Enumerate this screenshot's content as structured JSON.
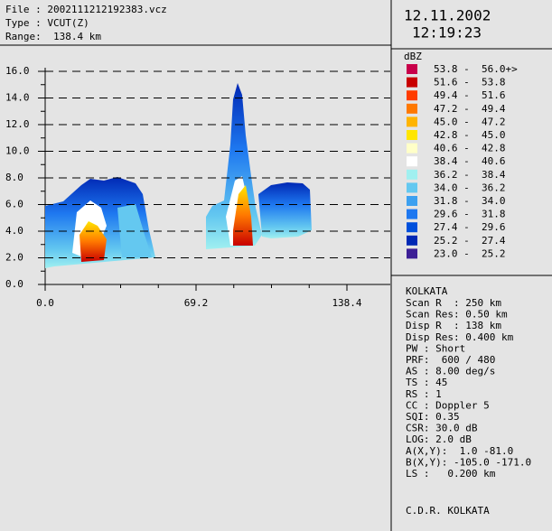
{
  "header": {
    "file": "File : 2002111212192383.vcz",
    "type": "Type : VCUT(Z)",
    "range": "Range:  138.4 km"
  },
  "date": "12.11.2002",
  "time": "12:19:23",
  "legend": {
    "unit": "dBZ",
    "rows": [
      {
        "label": "53.8 -  56.0+>",
        "color": "#c8004a"
      },
      {
        "label": "51.6 -  53.8",
        "color": "#c80000"
      },
      {
        "label": "49.4 -  51.6",
        "color": "#ff3c00"
      },
      {
        "label": "47.2 -  49.4",
        "color": "#ff7800"
      },
      {
        "label": "45.0 -  47.2",
        "color": "#ffb400"
      },
      {
        "label": "42.8 -  45.0",
        "color": "#ffe600"
      },
      {
        "label": "40.6 -  42.8",
        "color": "#ffffc8"
      },
      {
        "label": "38.4 -  40.6",
        "color": "#ffffff"
      },
      {
        "label": "36.2 -  38.4",
        "color": "#a0f0f0"
      },
      {
        "label": "34.0 -  36.2",
        "color": "#64c8f0"
      },
      {
        "label": "31.8 -  34.0",
        "color": "#3ca0f0"
      },
      {
        "label": "29.6 -  31.8",
        "color": "#1e78f0"
      },
      {
        "label": "27.4 -  29.6",
        "color": "#0050dc"
      },
      {
        "label": "25.2 -  27.4",
        "color": "#0028b4"
      },
      {
        "label": "23.0 -  25.2",
        "color": "#3c1e96"
      }
    ]
  },
  "plot": {
    "yticks": [
      "16.0",
      "14.0",
      "12.0",
      "10.0",
      "8.0",
      "6.0",
      "4.0",
      "2.0",
      "0.0"
    ],
    "xticks": [
      "0.0",
      "69.2",
      "138.4"
    ]
  },
  "info": {
    "station": "KOLKATA",
    "lines": [
      "Scan R  : 250 km",
      "Scan Res: 0.50 km",
      "Disp R  : 138 km",
      "Disp Res: 0.400 km",
      "PW : Short",
      "PRF:  600 / 480",
      "AS : 8.00 deg/s",
      "TS : 45",
      "RS : 1",
      "CC : Doppler 5",
      "SQI: 0.35",
      "CSR: 30.0 dB",
      "LOG: 2.0 dB",
      "A(X,Y):  1.0 -81.0",
      "B(X,Y): -105.0 -171.0",
      "LS :   0.200 km"
    ]
  },
  "footer": "C.D.R. KOLKATA"
}
